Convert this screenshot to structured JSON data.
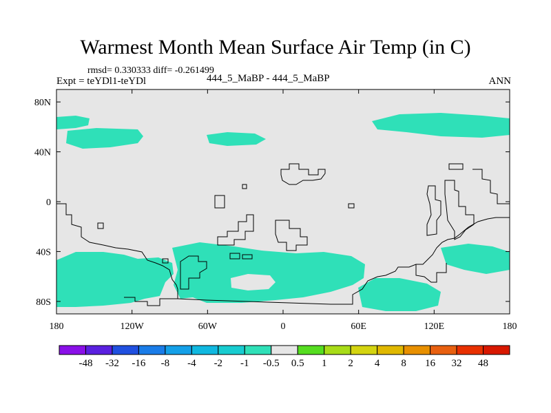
{
  "title": "Warmest Month Mean Surface Air Temp (in C)",
  "stats": "rmsd= 0.330333 diff= -0.261499",
  "expt": "Expt = teYDl1-teYDl",
  "experiment_name": "444_5_MaBP - 444_5_MaBP",
  "season": "ANN",
  "map": {
    "lon_ticks": [
      "180",
      "120W",
      "60W",
      "0",
      "60E",
      "120E",
      "180"
    ],
    "lat_ticks": [
      "80N",
      "40N",
      "0",
      "40S",
      "80S"
    ],
    "background_color": "#e6e6e6",
    "anomaly_color": "#2fe0b8",
    "coastline_color": "#000000"
  },
  "colorbar": {
    "labels": [
      "-48",
      "-32",
      "-16",
      "-8",
      "-4",
      "-2",
      "-1",
      "-0.5",
      "0.5",
      "1",
      "2",
      "4",
      "8",
      "16",
      "32",
      "48"
    ],
    "colors": [
      "#8a10e8",
      "#5a20e0",
      "#2050e0",
      "#1a7ce8",
      "#14a0e8",
      "#10b8e0",
      "#18ccd0",
      "#2fe0b8",
      "#e6e6e6",
      "#55dd20",
      "#a8dc18",
      "#d4d410",
      "#e0b800",
      "#e89000",
      "#e86010",
      "#e83000",
      "#d81800"
    ]
  }
}
